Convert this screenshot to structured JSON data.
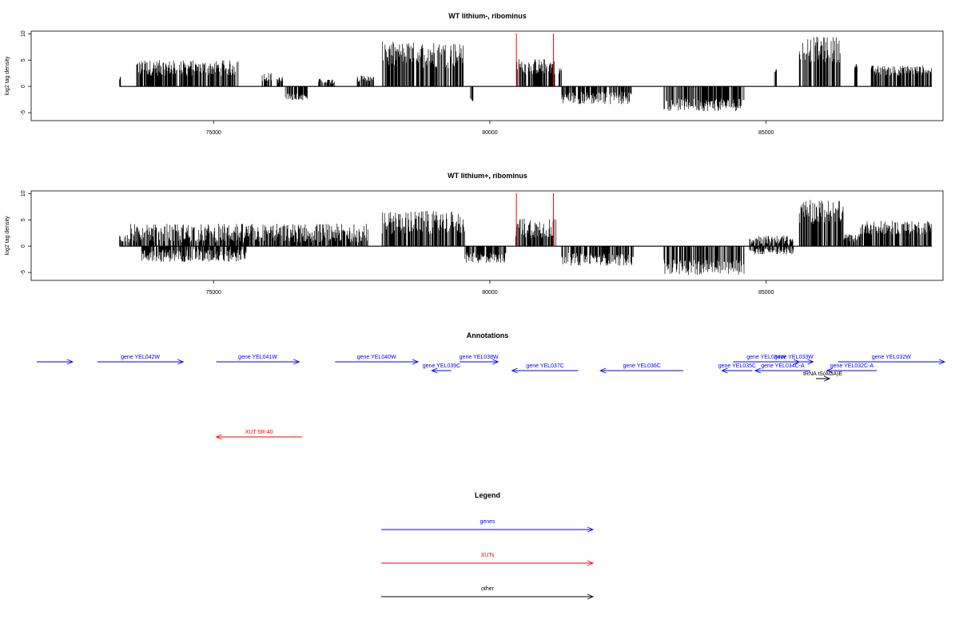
{
  "chart_data": [
    {
      "type": "bar",
      "title": "WT lithium-, ribominus",
      "ylabel": "log2 tag density",
      "xlim": [
        71700,
        88200
      ],
      "ylim": [
        -6.5,
        10.5
      ],
      "x_ticks": [
        75000,
        80000,
        85000
      ],
      "y_ticks": [
        -5,
        0,
        5,
        10
      ],
      "markers": [
        80480,
        81150
      ],
      "segments": [
        {
          "start": 73300,
          "end": 73320,
          "level": 1.5,
          "variation": 0.4
        },
        {
          "start": 73600,
          "end": 75450,
          "level": 3.5,
          "variation": 1.5
        },
        {
          "start": 75870,
          "end": 76050,
          "level": 1.8,
          "variation": 0.8
        },
        {
          "start": 76150,
          "end": 76250,
          "level": 1.2,
          "variation": 0.6
        },
        {
          "start": 76900,
          "end": 77200,
          "level": 1.0,
          "variation": 0.5
        },
        {
          "start": 77600,
          "end": 77900,
          "level": 1.5,
          "variation": 0.6
        },
        {
          "start": 78050,
          "end": 79550,
          "level": 6.0,
          "variation": 2.5
        },
        {
          "start": 80480,
          "end": 81180,
          "level": 3.8,
          "variation": 1.5
        },
        {
          "start": 81250,
          "end": 81300,
          "level": 3.0,
          "variation": 0.5
        },
        {
          "start": 81300,
          "end": 82600,
          "level": -2.2,
          "variation": 1.2
        },
        {
          "start": 83150,
          "end": 84600,
          "level": -3.5,
          "variation": 1.2
        },
        {
          "start": 85150,
          "end": 85200,
          "level": 3.0,
          "variation": 0.3
        },
        {
          "start": 85600,
          "end": 86350,
          "level": 7.0,
          "variation": 2.5
        },
        {
          "start": 86600,
          "end": 86650,
          "level": 4.0,
          "variation": 0.5
        },
        {
          "start": 86900,
          "end": 88000,
          "level": 3.0,
          "variation": 1.0
        },
        {
          "start": 76300,
          "end": 76700,
          "level": -2.0,
          "variation": 0.6
        },
        {
          "start": 79650,
          "end": 79700,
          "level": -2.5,
          "variation": 0.3
        }
      ]
    },
    {
      "type": "bar",
      "title": "WT lithium+, ribominus",
      "ylabel": "log2 tag density",
      "xlim": [
        71700,
        88200
      ],
      "ylim": [
        -6.5,
        10.5
      ],
      "x_ticks": [
        75000,
        80000,
        85000
      ],
      "y_ticks": [
        -5,
        0,
        5,
        10
      ],
      "markers": [
        80480,
        81150
      ],
      "segments": [
        {
          "start": 73300,
          "end": 73500,
          "level": 1.5,
          "variation": 0.8
        },
        {
          "start": 73500,
          "end": 77800,
          "level": 2.5,
          "variation": 1.8
        },
        {
          "start": 73700,
          "end": 75600,
          "level": -1.8,
          "variation": 1.2
        },
        {
          "start": 78050,
          "end": 79550,
          "level": 4.5,
          "variation": 2.2
        },
        {
          "start": 79550,
          "end": 80300,
          "level": -2.2,
          "variation": 1.0
        },
        {
          "start": 80450,
          "end": 81200,
          "level": 3.5,
          "variation": 2.0
        },
        {
          "start": 81300,
          "end": 82600,
          "level": -2.5,
          "variation": 1.2
        },
        {
          "start": 83150,
          "end": 84600,
          "level": -4.0,
          "variation": 1.5
        },
        {
          "start": 84700,
          "end": 85500,
          "level": 1.2,
          "variation": 0.8
        },
        {
          "start": 84700,
          "end": 85500,
          "level": -1.0,
          "variation": 0.6
        },
        {
          "start": 85600,
          "end": 86400,
          "level": 6.5,
          "variation": 2.3
        },
        {
          "start": 86400,
          "end": 86700,
          "level": 1.5,
          "variation": 0.8
        },
        {
          "start": 86700,
          "end": 88000,
          "level": 3.5,
          "variation": 1.3
        }
      ]
    }
  ],
  "annotations": {
    "title": "Annotations",
    "features": [
      {
        "label": "",
        "start": 71800,
        "end": 72450,
        "row": 0,
        "kind": "gene",
        "strand": "+"
      },
      {
        "label": "gene YEL042W",
        "start": 72900,
        "end": 74450,
        "row": 0,
        "kind": "gene",
        "strand": "+"
      },
      {
        "label": "gene YEL041W",
        "start": 75050,
        "end": 76550,
        "row": 0,
        "kind": "gene",
        "strand": "+"
      },
      {
        "label": "gene YEL040W",
        "start": 77200,
        "end": 78700,
        "row": 0,
        "kind": "gene",
        "strand": "+"
      },
      {
        "label": "gene YEL039C",
        "start": 78950,
        "end": 79300,
        "row": 1,
        "kind": "gene",
        "strand": "-"
      },
      {
        "label": "gene YEL038W",
        "start": 79450,
        "end": 80150,
        "row": 0,
        "kind": "gene",
        "strand": "+"
      },
      {
        "label": "gene YEL037C",
        "start": 80400,
        "end": 81600,
        "row": 1,
        "kind": "gene",
        "strand": "-"
      },
      {
        "label": "gene YEL036C",
        "start": 82000,
        "end": 83500,
        "row": 1,
        "kind": "gene",
        "strand": "-"
      },
      {
        "label": "gene YEL035C",
        "start": 84200,
        "end": 84750,
        "row": 1,
        "kind": "gene",
        "strand": "-"
      },
      {
        "label": "gene YEL034W",
        "start": 84400,
        "end": 85600,
        "row": 0,
        "kind": "gene",
        "strand": "+"
      },
      {
        "label": "gene YEL034C-A",
        "start": 84800,
        "end": 85800,
        "row": 1,
        "kind": "gene",
        "strand": "-"
      },
      {
        "label": "gene YEL033W",
        "start": 85150,
        "end": 85850,
        "row": 0,
        "kind": "gene",
        "strand": "+"
      },
      {
        "label": "tRNA tS(AGA)E",
        "start": 85900,
        "end": 86150,
        "row": 2,
        "kind": "other",
        "strand": "+"
      },
      {
        "label": "gene YEL032C-A",
        "start": 86100,
        "end": 87000,
        "row": 1,
        "kind": "gene",
        "strand": "-"
      },
      {
        "label": "gene YEL032W",
        "start": 86300,
        "end": 89000,
        "row": 0,
        "kind": "gene",
        "strand": "+"
      },
      {
        "label": "XUT 5R-40",
        "start": 75050,
        "end": 76600,
        "row": 3,
        "kind": "xut",
        "strand": "-"
      }
    ]
  },
  "legend": {
    "title": "Legend",
    "items": [
      {
        "label": "genes",
        "kind": "gene"
      },
      {
        "label": "XUTs",
        "kind": "xut"
      },
      {
        "label": "other",
        "kind": "other"
      }
    ]
  },
  "colors": {
    "gene": "#0000ff",
    "xut": "#ff0000",
    "other": "#000000",
    "marker": "#ff0000",
    "signal": "#000000"
  }
}
